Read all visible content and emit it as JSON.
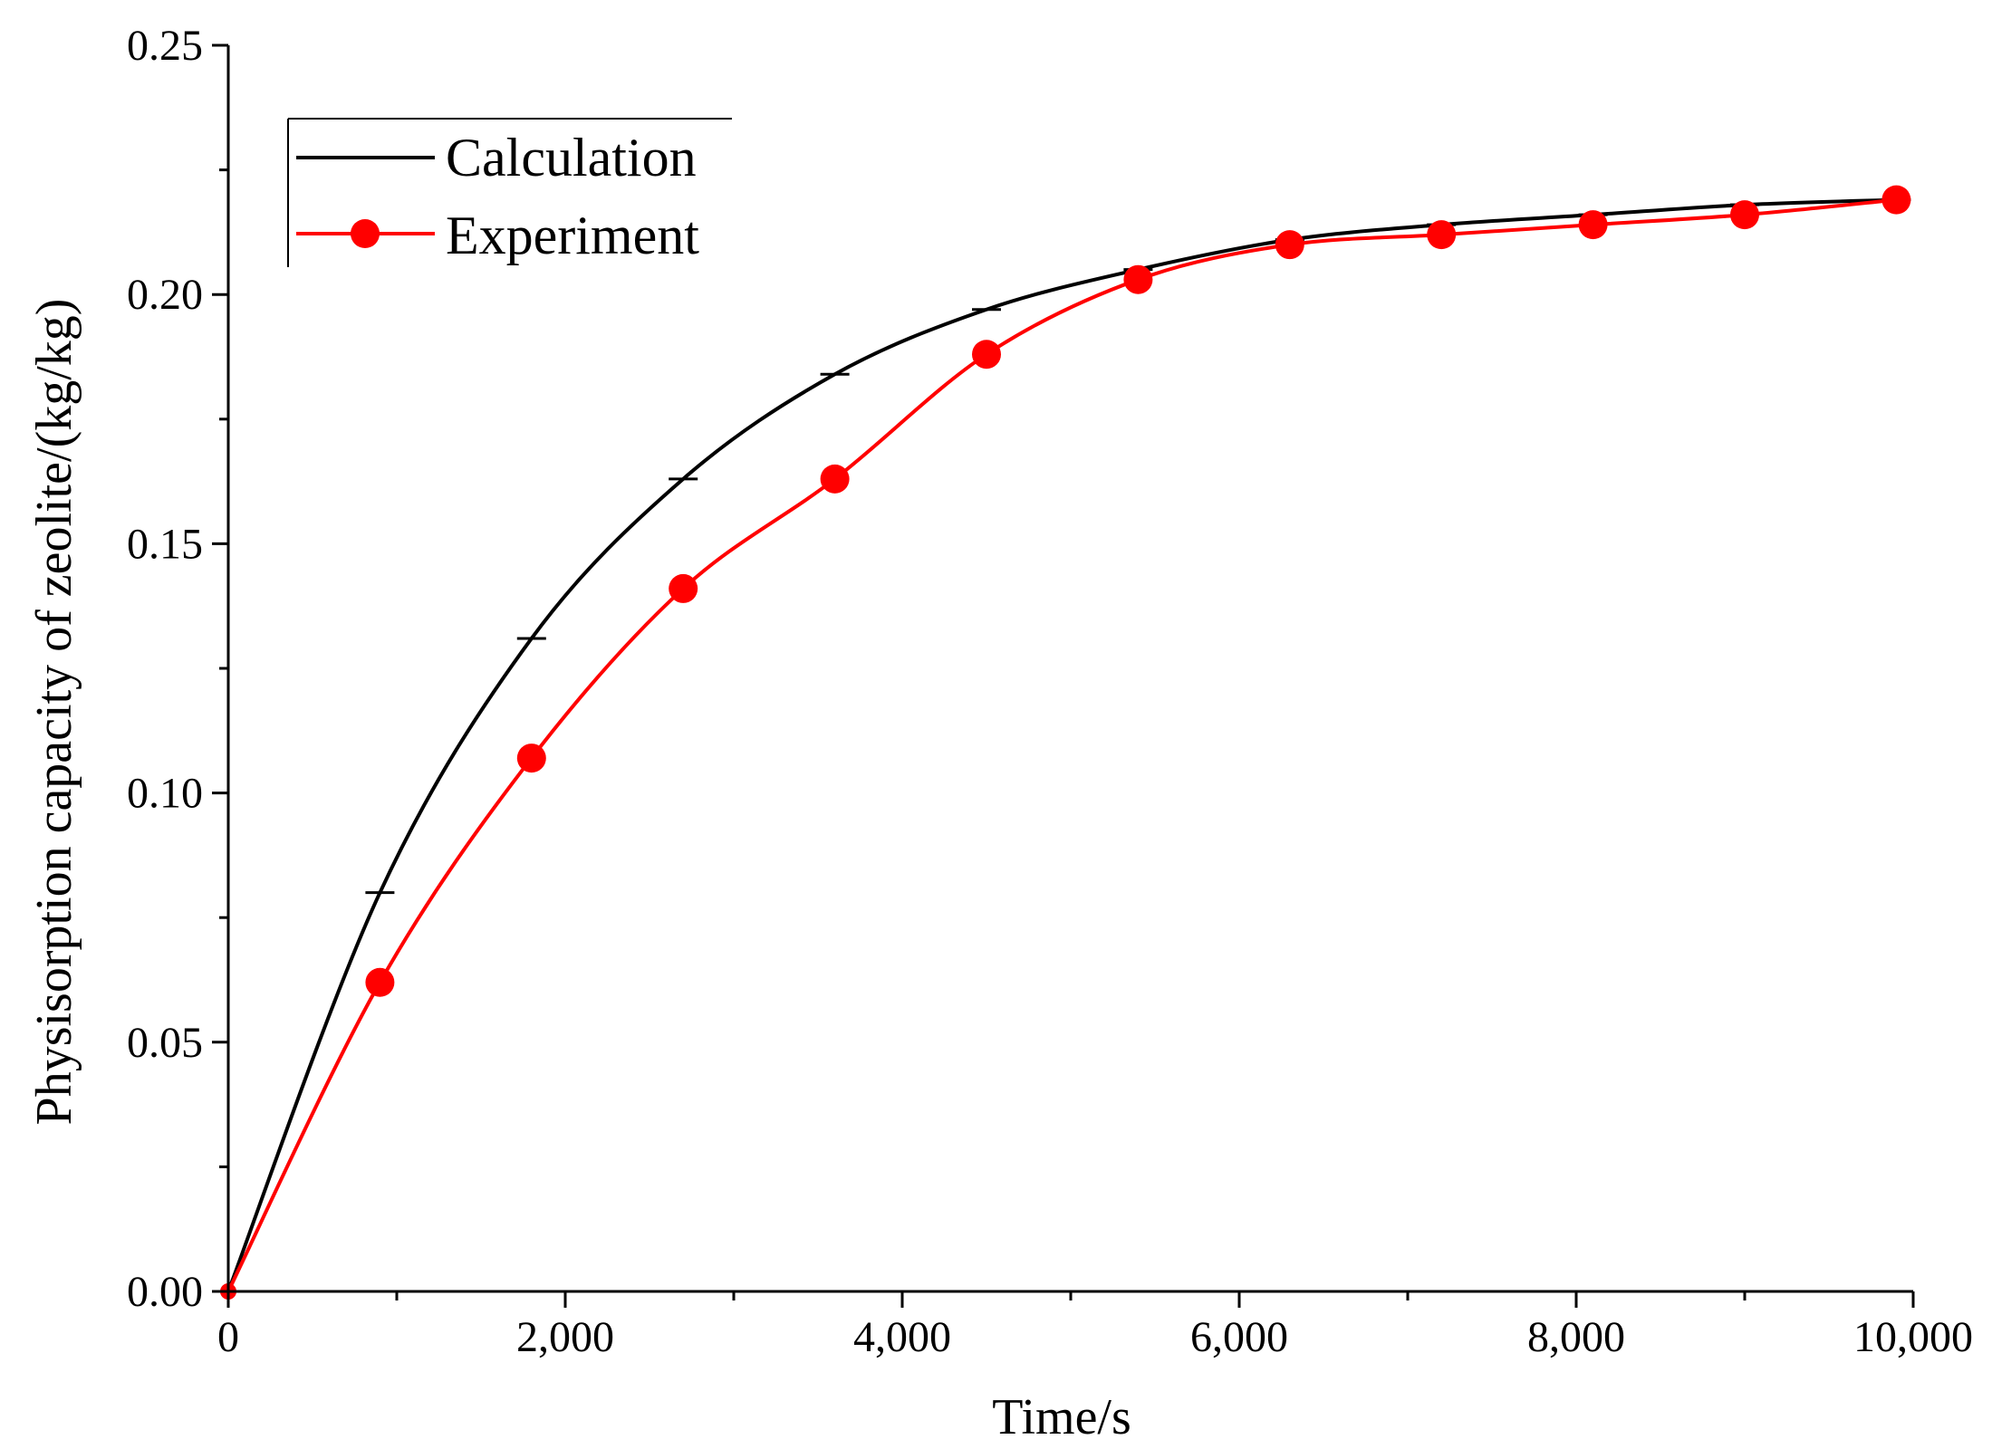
{
  "chart_data": {
    "type": "line",
    "title": "",
    "xlabel": "Time/s",
    "ylabel": "Physisorption capacity of zeolite/(kg/kg)",
    "xlim": [
      0,
      10000
    ],
    "ylim": [
      0,
      0.25
    ],
    "x_ticks": [
      0,
      2000,
      4000,
      6000,
      8000,
      10000
    ],
    "x_tick_labels": [
      "0",
      "2,000",
      "4,000",
      "6,000",
      "8,000",
      "10,000"
    ],
    "y_ticks": [
      0,
      0.05,
      0.1,
      0.15,
      0.2,
      0.25
    ],
    "y_tick_labels": [
      "0.00",
      "0.05",
      "0.10",
      "0.15",
      "0.20",
      "0.25"
    ],
    "grid": false,
    "legend_position": "top-left",
    "colors": {
      "calculation": "#000000",
      "experiment": "#ff0000",
      "axis": "#000000"
    },
    "series": [
      {
        "name": "Calculation",
        "marker": "dash",
        "x": [
          0,
          900,
          1800,
          2700,
          3600,
          4500,
          5400,
          6300,
          7200,
          8100,
          9000,
          9900
        ],
        "y": [
          0,
          0.08,
          0.131,
          0.163,
          0.184,
          0.197,
          0.205,
          0.211,
          0.214,
          0.216,
          0.218,
          0.219
        ]
      },
      {
        "name": "Experiment",
        "marker": "circle",
        "x": [
          0,
          900,
          1800,
          2700,
          3600,
          4500,
          5400,
          6300,
          7200,
          8100,
          9000,
          9900
        ],
        "y": [
          0,
          0.062,
          0.107,
          0.141,
          0.163,
          0.188,
          0.203,
          0.21,
          0.212,
          0.214,
          0.216,
          0.219
        ]
      }
    ]
  }
}
